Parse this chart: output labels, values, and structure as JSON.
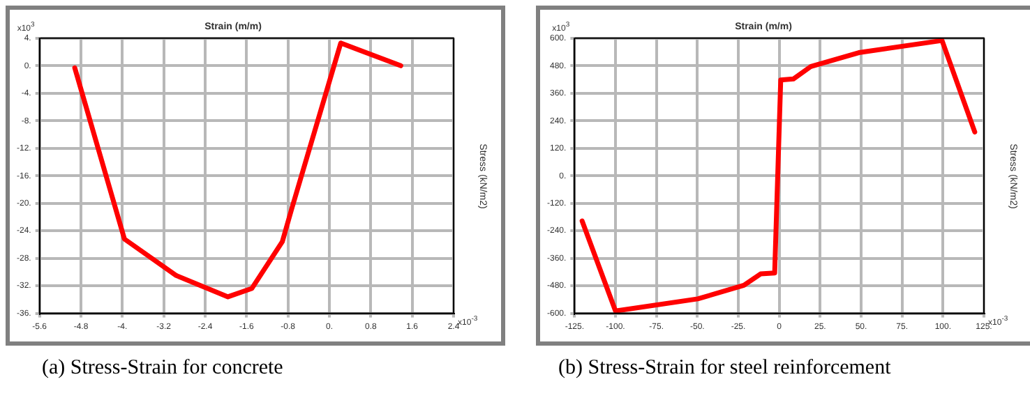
{
  "chart_data": [
    {
      "type": "line",
      "title": "(a) Stress-Strain for concrete",
      "xlabel": "Strain (m/m)",
      "ylabel": "Stress (kN/m2)",
      "annotations": [
        "x10$^{3}$",
        "x10$^{-3}$"
      ],
      "series": [
        {
          "color": "#ff0000",
          "x": [
            -4.92,
            -3.96,
            -2.96,
            -1.96,
            -1.5,
            -0.91,
            -0.72,
            0.22,
            1.38
          ],
          "values": [
            -0.3,
            -25.2,
            -30.5,
            -33.6,
            -32.4,
            -25.6,
            -20.6,
            3.3,
            0
          ]
        }
      ],
      "xlim": [
        -5.6,
        2.4
      ],
      "xticks": [
        {
          "value": -5.6,
          "label": "-5.6"
        },
        {
          "value": -4.8,
          "label": "-4.8"
        },
        {
          "value": -4,
          "label": "-4."
        },
        {
          "value": -3.2,
          "label": "-3.2"
        },
        {
          "value": -2.4,
          "label": "-2.4"
        },
        {
          "value": -1.6,
          "label": "-1.6"
        },
        {
          "value": -0.8,
          "label": "-0.8"
        },
        {
          "value": 0,
          "label": "0."
        },
        {
          "value": 0.8,
          "label": "0.8"
        },
        {
          "value": 1.6,
          "label": "1.6"
        },
        {
          "value": 2.4,
          "label": "2.4"
        }
      ],
      "ylim": [
        -36,
        4
      ],
      "yticks": [
        {
          "value": -36,
          "label": "-36."
        },
        {
          "value": -32,
          "label": "-32."
        },
        {
          "value": -28,
          "label": "-28."
        },
        {
          "value": -24,
          "label": "-24."
        },
        {
          "value": -20,
          "label": "-20."
        },
        {
          "value": -16,
          "label": "-16."
        },
        {
          "value": -12,
          "label": "-12."
        },
        {
          "value": -8,
          "label": "-8."
        },
        {
          "value": -4,
          "label": "-4."
        },
        {
          "value": 0,
          "label": "0."
        },
        {
          "value": 4,
          "label": "4."
        }
      ],
      "grid": true,
      "legend": false,
      "marker": "none",
      "line_style": "solid"
    },
    {
      "type": "line",
      "title": "(b) Stress-Strain for steel reinforcement",
      "xlabel": "Strain (m/m)",
      "ylabel": "Stress (kN/m2)",
      "annotations": [
        "x10$^{3}$",
        "x10$^{-3}$"
      ],
      "series": [
        {
          "color": "#ff0000",
          "x": [
            -120.4,
            -100,
            -49.8,
            -21.6,
            -11.4,
            -2.8,
            0.9,
            8.6,
            19.4,
            48.6,
            99.4,
            119.4
          ],
          "values": [
            -197,
            -590,
            -537,
            -478,
            -428,
            -424,
            418,
            422,
            477,
            537,
            590,
            191
          ]
        }
      ],
      "xlim": [
        -125,
        125
      ],
      "xticks": [
        {
          "value": -125,
          "label": "-125."
        },
        {
          "value": -100,
          "label": "-100."
        },
        {
          "value": -75,
          "label": "-75."
        },
        {
          "value": -50,
          "label": "-50."
        },
        {
          "value": -25,
          "label": "-25."
        },
        {
          "value": 0,
          "label": "0"
        },
        {
          "value": 25,
          "label": "25."
        },
        {
          "value": 50,
          "label": "50."
        },
        {
          "value": 75,
          "label": "75."
        },
        {
          "value": 100,
          "label": "100."
        },
        {
          "value": 125,
          "label": "125."
        }
      ],
      "ylim": [
        -600,
        600
      ],
      "yticks": [
        {
          "value": -600,
          "label": "-600."
        },
        {
          "value": -480,
          "label": "-480."
        },
        {
          "value": -360,
          "label": "-360."
        },
        {
          "value": -240,
          "label": "-240."
        },
        {
          "value": -120,
          "label": "-120."
        },
        {
          "value": 0,
          "label": "0."
        },
        {
          "value": 120,
          "label": "120."
        },
        {
          "value": 240,
          "label": "240."
        },
        {
          "value": 360,
          "label": "360."
        },
        {
          "value": 480,
          "label": "480."
        },
        {
          "value": 600,
          "label": "600."
        }
      ],
      "grid": true,
      "legend": false,
      "marker": "none",
      "line_style": "solid"
    }
  ]
}
